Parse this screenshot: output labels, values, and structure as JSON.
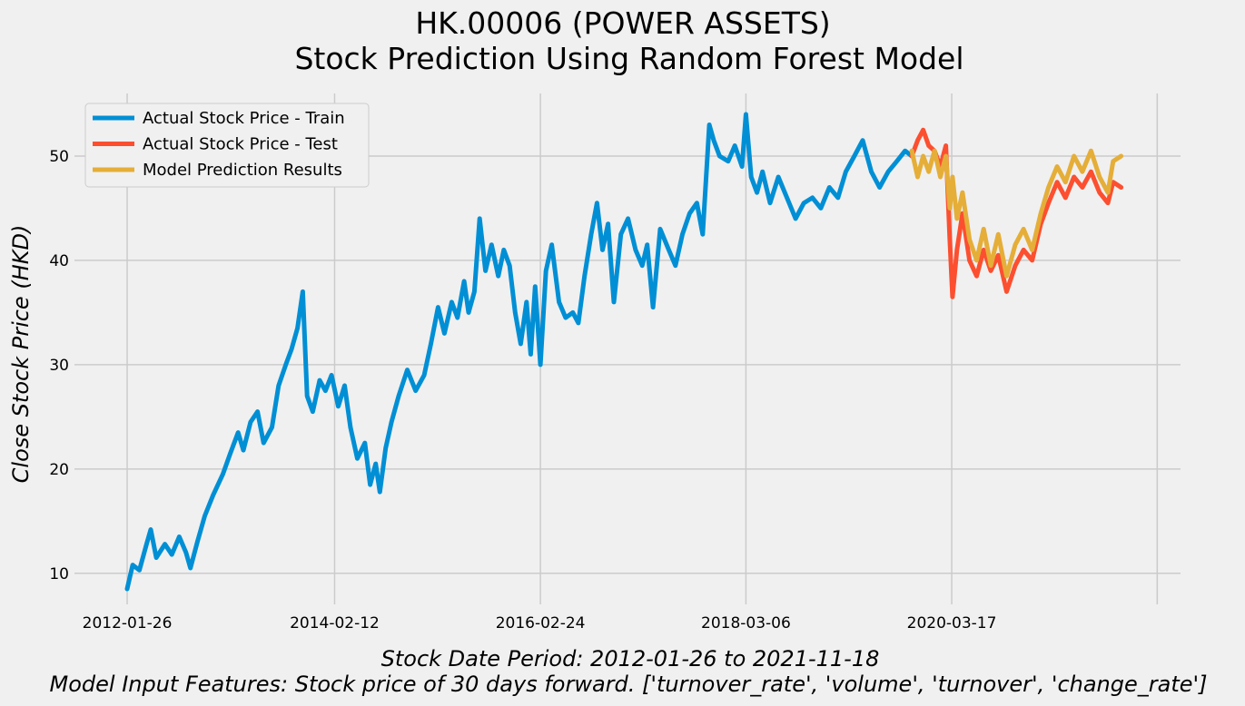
{
  "chart_data": {
    "type": "line",
    "title": "HK.00006 (POWER ASSETS)",
    "subtitle": "Stock Prediction Using Random Forest Model",
    "ylabel": "Close Stock Price (HKD)",
    "xlabel_line1": "Stock Date Period:  2012-01-26 to 2021-11-18",
    "xlabel_line2": "Model Input Features:  Stock price of 30 days forward. ['turnover_rate', 'volume', 'turnover', 'change_rate']",
    "x_ticks": [
      "2012-01-26",
      "2014-02-12",
      "2016-02-24",
      "2018-03-06",
      "2020-03-17"
    ],
    "xlim": [
      "2011-07-20",
      "2022-06-20"
    ],
    "y_ticks": [
      10,
      20,
      30,
      40,
      50
    ],
    "ylim": [
      6.5,
      56
    ],
    "grid": true,
    "legend_position": "top-left",
    "colors": {
      "train": "#008fd5",
      "test": "#fc4f30",
      "pred": "#e5ae38",
      "background": "#f0f0f0",
      "grid": "#cbcbcb"
    },
    "series": [
      {
        "key": "train",
        "name": "Actual Stock Price - Train",
        "points": [
          [
            "2012-01-26",
            8.5
          ],
          [
            "2012-02-15",
            10.8
          ],
          [
            "2012-03-10",
            10.3
          ],
          [
            "2012-04-05",
            12.8
          ],
          [
            "2012-04-20",
            14.2
          ],
          [
            "2012-05-10",
            11.5
          ],
          [
            "2012-06-10",
            12.8
          ],
          [
            "2012-07-05",
            11.8
          ],
          [
            "2012-08-01",
            13.5
          ],
          [
            "2012-08-25",
            12.0
          ],
          [
            "2012-09-10",
            10.5
          ],
          [
            "2012-10-05",
            13.0
          ],
          [
            "2012-11-01",
            15.5
          ],
          [
            "2012-12-01",
            17.5
          ],
          [
            "2013-01-05",
            19.5
          ],
          [
            "2013-02-01",
            21.5
          ],
          [
            "2013-03-01",
            23.5
          ],
          [
            "2013-03-20",
            21.8
          ],
          [
            "2013-04-15",
            24.5
          ],
          [
            "2013-05-10",
            25.5
          ],
          [
            "2013-06-01",
            22.5
          ],
          [
            "2013-07-01",
            24.0
          ],
          [
            "2013-07-25",
            28.0
          ],
          [
            "2013-08-20",
            30.0
          ],
          [
            "2013-09-10",
            31.5
          ],
          [
            "2013-10-01",
            33.5
          ],
          [
            "2013-10-20",
            37.0
          ],
          [
            "2013-11-05",
            27.0
          ],
          [
            "2013-11-25",
            25.5
          ],
          [
            "2013-12-20",
            28.5
          ],
          [
            "2014-01-10",
            27.5
          ],
          [
            "2014-02-01",
            29.0
          ],
          [
            "2014-02-25",
            26.0
          ],
          [
            "2014-03-20",
            28.0
          ],
          [
            "2014-04-10",
            24.0
          ],
          [
            "2014-05-05",
            21.0
          ],
          [
            "2014-06-01",
            22.5
          ],
          [
            "2014-06-20",
            18.5
          ],
          [
            "2014-07-10",
            20.5
          ],
          [
            "2014-07-25",
            17.8
          ],
          [
            "2014-08-15",
            22.0
          ],
          [
            "2014-09-05",
            24.5
          ],
          [
            "2014-10-01",
            27.0
          ],
          [
            "2014-11-01",
            29.5
          ],
          [
            "2014-12-01",
            27.5
          ],
          [
            "2015-01-01",
            29.0
          ],
          [
            "2015-01-25",
            32.0
          ],
          [
            "2015-02-20",
            35.5
          ],
          [
            "2015-03-15",
            33.0
          ],
          [
            "2015-04-10",
            36.0
          ],
          [
            "2015-05-01",
            34.5
          ],
          [
            "2015-05-25",
            38.0
          ],
          [
            "2015-06-10",
            35.0
          ],
          [
            "2015-07-01",
            37.0
          ],
          [
            "2015-07-20",
            44.0
          ],
          [
            "2015-08-10",
            39.0
          ],
          [
            "2015-09-01",
            41.5
          ],
          [
            "2015-09-25",
            38.5
          ],
          [
            "2015-10-15",
            41.0
          ],
          [
            "2015-11-05",
            39.5
          ],
          [
            "2015-11-25",
            35.0
          ],
          [
            "2015-12-15",
            32.0
          ],
          [
            "2016-01-05",
            36.0
          ],
          [
            "2016-01-20",
            31.0
          ],
          [
            "2016-02-05",
            37.5
          ],
          [
            "2016-02-24",
            30.0
          ],
          [
            "2016-03-15",
            39.0
          ],
          [
            "2016-04-05",
            41.5
          ],
          [
            "2016-05-01",
            36.0
          ],
          [
            "2016-05-25",
            34.5
          ],
          [
            "2016-06-20",
            35.0
          ],
          [
            "2016-07-10",
            34.0
          ],
          [
            "2016-08-01",
            38.5
          ],
          [
            "2016-08-25",
            42.5
          ],
          [
            "2016-09-15",
            45.5
          ],
          [
            "2016-10-05",
            41.0
          ],
          [
            "2016-10-25",
            43.5
          ],
          [
            "2016-11-15",
            36.0
          ],
          [
            "2016-12-10",
            42.5
          ],
          [
            "2017-01-05",
            44.0
          ],
          [
            "2017-02-01",
            41.0
          ],
          [
            "2017-02-25",
            39.5
          ],
          [
            "2017-03-15",
            41.5
          ],
          [
            "2017-04-05",
            35.5
          ],
          [
            "2017-05-01",
            43.0
          ],
          [
            "2017-06-01",
            41.0
          ],
          [
            "2017-06-25",
            39.5
          ],
          [
            "2017-07-20",
            42.5
          ],
          [
            "2017-08-15",
            44.5
          ],
          [
            "2017-09-10",
            45.5
          ],
          [
            "2017-10-01",
            42.5
          ],
          [
            "2017-10-25",
            53.0
          ],
          [
            "2017-11-10",
            51.5
          ],
          [
            "2017-12-01",
            50.0
          ],
          [
            "2018-01-01",
            49.5
          ],
          [
            "2018-01-25",
            51.0
          ],
          [
            "2018-02-20",
            49.0
          ],
          [
            "2018-03-06",
            54.0
          ],
          [
            "2018-03-25",
            48.0
          ],
          [
            "2018-04-15",
            46.5
          ],
          [
            "2018-05-05",
            48.5
          ],
          [
            "2018-06-01",
            45.5
          ],
          [
            "2018-07-01",
            48.0
          ],
          [
            "2018-08-01",
            46.0
          ],
          [
            "2018-09-01",
            44.0
          ],
          [
            "2018-10-01",
            45.5
          ],
          [
            "2018-11-01",
            46.0
          ],
          [
            "2018-12-01",
            45.0
          ],
          [
            "2019-01-01",
            47.0
          ],
          [
            "2019-02-01",
            46.0
          ],
          [
            "2019-03-01",
            48.5
          ],
          [
            "2019-04-01",
            50.0
          ],
          [
            "2019-05-01",
            51.5
          ],
          [
            "2019-06-01",
            48.5
          ],
          [
            "2019-07-01",
            47.0
          ],
          [
            "2019-08-01",
            48.5
          ],
          [
            "2019-09-01",
            49.5
          ],
          [
            "2019-10-01",
            50.5
          ],
          [
            "2019-10-25",
            50.0
          ]
        ]
      },
      {
        "key": "test",
        "name": "Actual Stock Price - Test",
        "points": [
          [
            "2019-10-25",
            50.0
          ],
          [
            "2019-11-15",
            51.5
          ],
          [
            "2019-12-05",
            52.5
          ],
          [
            "2019-12-25",
            51.0
          ],
          [
            "2020-01-15",
            50.5
          ],
          [
            "2020-02-05",
            49.0
          ],
          [
            "2020-02-25",
            51.0
          ],
          [
            "2020-03-10",
            42.0
          ],
          [
            "2020-03-20",
            36.5
          ],
          [
            "2020-04-05",
            41.0
          ],
          [
            "2020-04-25",
            44.5
          ],
          [
            "2020-05-20",
            40.0
          ],
          [
            "2020-06-15",
            38.5
          ],
          [
            "2020-07-10",
            41.0
          ],
          [
            "2020-08-05",
            39.0
          ],
          [
            "2020-09-01",
            40.5
          ],
          [
            "2020-10-01",
            37.0
          ],
          [
            "2020-11-01",
            39.5
          ],
          [
            "2020-12-01",
            41.0
          ],
          [
            "2021-01-01",
            40.0
          ],
          [
            "2021-02-01",
            43.5
          ],
          [
            "2021-03-01",
            45.5
          ],
          [
            "2021-04-01",
            47.5
          ],
          [
            "2021-05-01",
            46.0
          ],
          [
            "2021-06-01",
            48.0
          ],
          [
            "2021-07-01",
            47.0
          ],
          [
            "2021-08-01",
            48.5
          ],
          [
            "2021-09-01",
            46.5
          ],
          [
            "2021-10-01",
            45.5
          ],
          [
            "2021-10-20",
            47.5
          ],
          [
            "2021-11-18",
            47.0
          ]
        ]
      },
      {
        "key": "pred",
        "name": "Model Prediction Results",
        "points": [
          [
            "2019-10-25",
            50.5
          ],
          [
            "2019-11-15",
            48.0
          ],
          [
            "2019-12-05",
            50.0
          ],
          [
            "2019-12-25",
            48.5
          ],
          [
            "2020-01-15",
            50.5
          ],
          [
            "2020-02-05",
            48.0
          ],
          [
            "2020-02-25",
            50.0
          ],
          [
            "2020-03-10",
            45.0
          ],
          [
            "2020-03-20",
            48.0
          ],
          [
            "2020-04-05",
            44.0
          ],
          [
            "2020-04-25",
            46.5
          ],
          [
            "2020-05-20",
            42.0
          ],
          [
            "2020-06-15",
            40.0
          ],
          [
            "2020-07-10",
            43.0
          ],
          [
            "2020-08-05",
            39.5
          ],
          [
            "2020-09-01",
            42.5
          ],
          [
            "2020-10-01",
            38.5
          ],
          [
            "2020-11-01",
            41.5
          ],
          [
            "2020-12-01",
            43.0
          ],
          [
            "2021-01-01",
            41.0
          ],
          [
            "2021-02-01",
            44.5
          ],
          [
            "2021-03-01",
            47.0
          ],
          [
            "2021-04-01",
            49.0
          ],
          [
            "2021-05-01",
            47.5
          ],
          [
            "2021-06-01",
            50.0
          ],
          [
            "2021-07-01",
            48.5
          ],
          [
            "2021-08-01",
            50.5
          ],
          [
            "2021-09-01",
            48.0
          ],
          [
            "2021-10-01",
            46.5
          ],
          [
            "2021-10-20",
            49.5
          ],
          [
            "2021-11-18",
            50.0
          ]
        ]
      }
    ]
  }
}
